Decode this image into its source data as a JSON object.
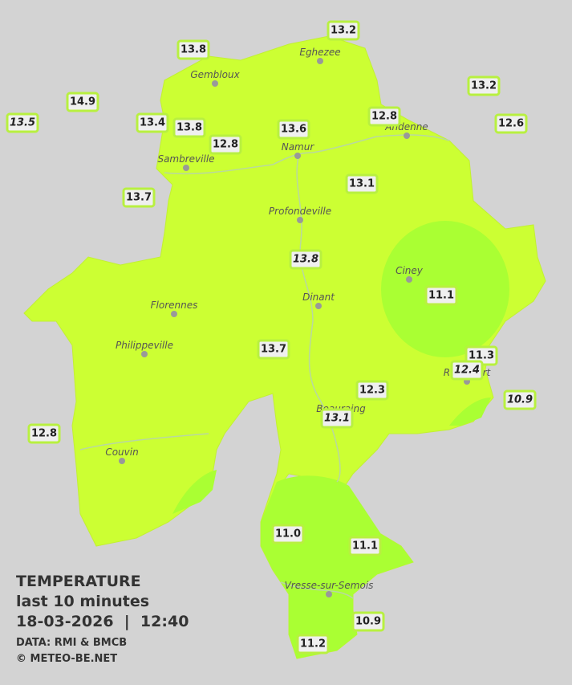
{
  "legend": {
    "title": "TEMPERATURE",
    "period": "last 10 minutes",
    "timestamp": "18-03-2026  |  12:40",
    "source": "DATA: RMI & BMCB",
    "copyright": "© METEO-BE.NET"
  },
  "towns": [
    {
      "name": "Eghezee"
    },
    {
      "name": "Gembloux"
    },
    {
      "name": "Andenne"
    },
    {
      "name": "Namur"
    },
    {
      "name": "Sambreville"
    },
    {
      "name": "Profondeville"
    },
    {
      "name": "Ciney"
    },
    {
      "name": "Dinant"
    },
    {
      "name": "Florennes"
    },
    {
      "name": "Philippeville"
    },
    {
      "name": "Rochefort"
    },
    {
      "name": "Beauraing"
    },
    {
      "name": "Couvin"
    },
    {
      "name": "Vresse-sur-Semois"
    }
  ],
  "stations": [
    {
      "value": "13.2"
    },
    {
      "value": "13.8"
    },
    {
      "value": "13.2"
    },
    {
      "value": "14.9"
    },
    {
      "value": "13.5",
      "italic": true
    },
    {
      "value": "13.4"
    },
    {
      "value": "13.8"
    },
    {
      "value": "12.8"
    },
    {
      "value": "12.6"
    },
    {
      "value": "13.6"
    },
    {
      "value": "12.8"
    },
    {
      "value": "13.1"
    },
    {
      "value": "13.7"
    },
    {
      "value": "13.8",
      "italic": true
    },
    {
      "value": "11.1"
    },
    {
      "value": "13.7"
    },
    {
      "value": "11.3"
    },
    {
      "value": "12.4",
      "italic": true
    },
    {
      "value": "12.3"
    },
    {
      "value": "10.9",
      "italic": true
    },
    {
      "value": "13.1",
      "italic": true
    },
    {
      "value": "12.8"
    },
    {
      "value": "11.0"
    },
    {
      "value": "11.1"
    },
    {
      "value": "10.9"
    },
    {
      "value": "11.2"
    }
  ]
}
